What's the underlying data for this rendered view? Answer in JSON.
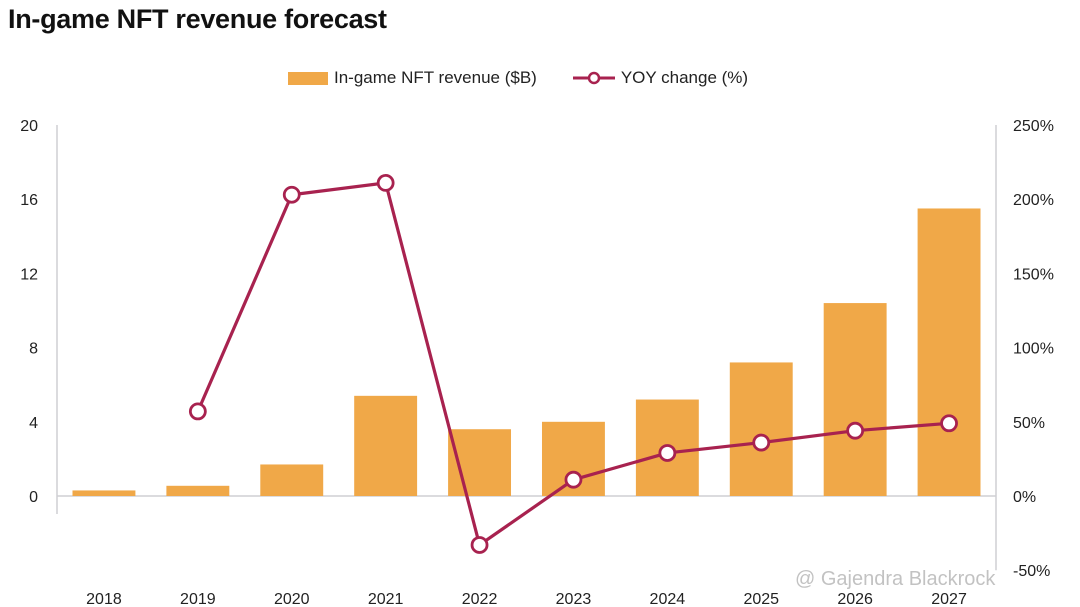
{
  "chart_data": {
    "type": "bar+line",
    "title": "In-game NFT revenue forecast",
    "categories": [
      "2018",
      "2019",
      "2020",
      "2021",
      "2022",
      "2023",
      "2024",
      "2025",
      "2026",
      "2027"
    ],
    "series": [
      {
        "name": "In-game NFT revenue ($B)",
        "type": "bar",
        "axis": "left",
        "color": "#f0a848",
        "values": [
          0.3,
          0.55,
          1.7,
          5.4,
          3.6,
          4.0,
          5.2,
          7.2,
          10.4,
          15.5
        ]
      },
      {
        "name": "YOY change (%)",
        "type": "line",
        "axis": "right",
        "color": "#a8224f",
        "values": [
          null,
          57,
          203,
          211,
          -33,
          11,
          29,
          36,
          44,
          49
        ]
      }
    ],
    "left_axis": {
      "ylim": [
        0,
        20
      ],
      "ticks": [
        "0",
        "4",
        "8",
        "12",
        "16",
        "20"
      ],
      "tick_values": [
        0,
        4,
        8,
        12,
        16,
        20
      ]
    },
    "right_axis": {
      "ylim": [
        -50,
        250
      ],
      "ticks": [
        "-50%",
        "0%",
        "50%",
        "100%",
        "150%",
        "200%",
        "250%"
      ],
      "tick_values": [
        -50,
        0,
        50,
        100,
        150,
        200,
        250
      ]
    },
    "legend": "top-center",
    "grid": false,
    "xlabel": "",
    "ylabel": ""
  },
  "legend_items": [
    "In-game NFT revenue ($B)",
    "YOY change (%)"
  ],
  "watermark": "@ Gajendra Blackrock"
}
